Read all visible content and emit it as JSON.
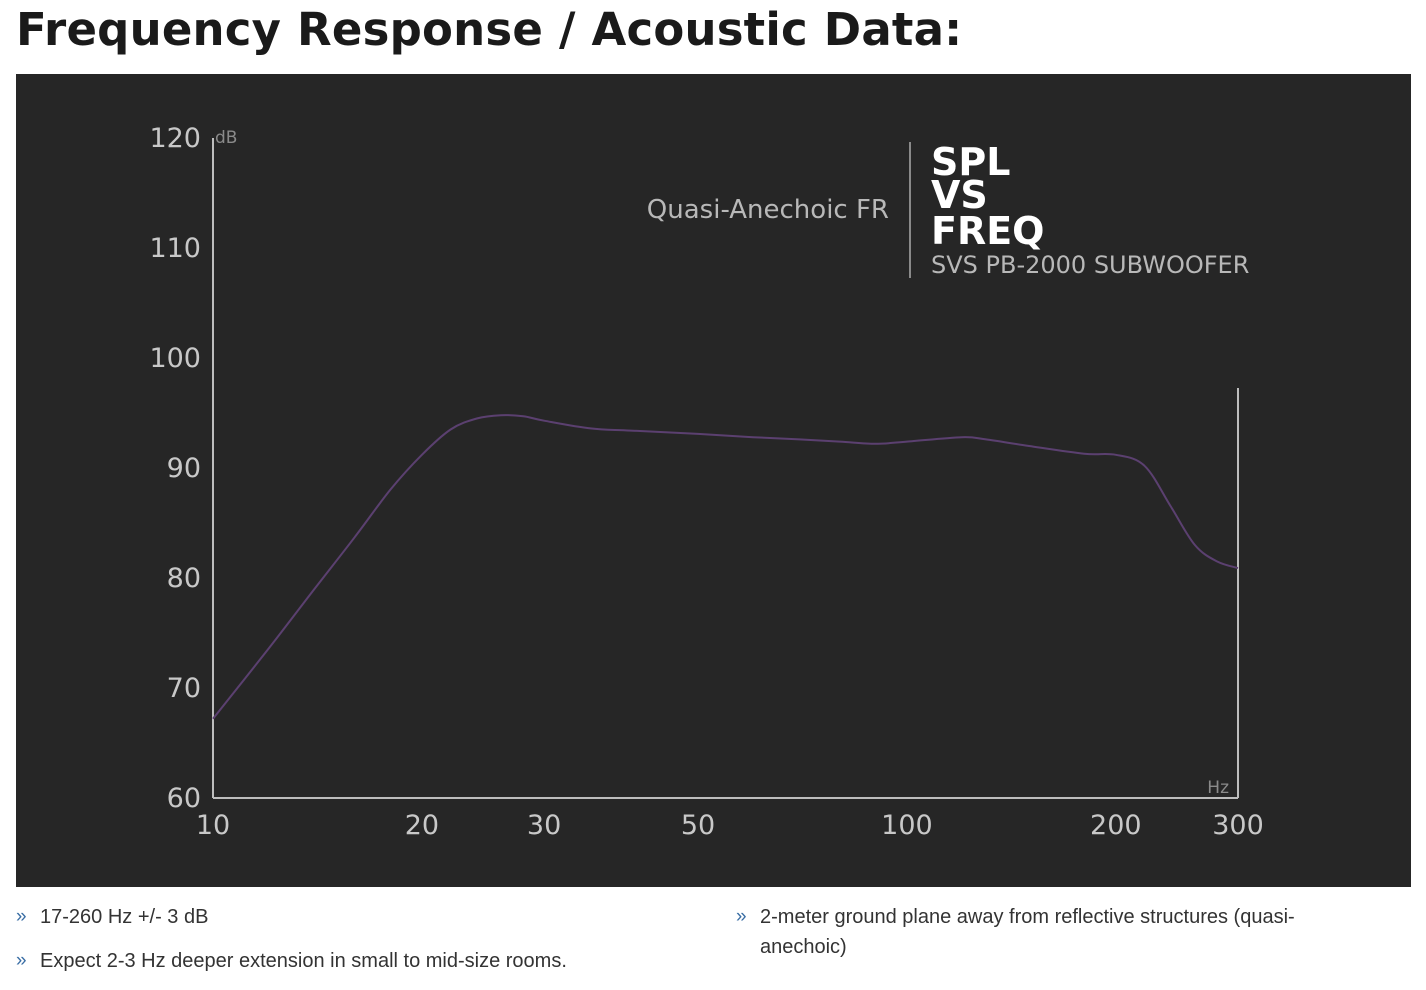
{
  "page": {
    "title": "Frequency Response / Acoustic Data:"
  },
  "graphic": {
    "subtitle": "Quasi-Anechoic FR",
    "heading_lines": [
      "SPL",
      "VS",
      "FREQ"
    ],
    "product": "SVS PB-2000 SUBWOOFER"
  },
  "chart_data": {
    "type": "line",
    "xscale": "log",
    "xlim": [
      10,
      300
    ],
    "ylim": [
      60,
      120
    ],
    "x_unit": "Hz",
    "y_unit": "dB",
    "x_ticks": [
      10,
      20,
      30,
      50,
      100,
      200,
      300
    ],
    "y_ticks": [
      60,
      70,
      80,
      90,
      100,
      110,
      120
    ],
    "grid": false,
    "series": [
      {
        "color": "#5b4070",
        "x": [
          10,
          12,
          14,
          16,
          18,
          20,
          22,
          24,
          26,
          28,
          30,
          35,
          40,
          50,
          60,
          70,
          80,
          90,
          100,
          120,
          130,
          150,
          180,
          200,
          220,
          240,
          260,
          280,
          300
        ],
        "y": [
          67.2,
          73.5,
          79,
          83.7,
          88,
          91.2,
          93.5,
          94.5,
          94.8,
          94.7,
          94.3,
          93.6,
          93.4,
          93.1,
          92.8,
          92.6,
          92.4,
          92.2,
          92.4,
          92.8,
          92.6,
          92.0,
          91.3,
          91.2,
          90.2,
          86.5,
          83,
          81.5,
          80.9
        ]
      }
    ]
  },
  "notes": {
    "left": [
      "17-260 Hz +/- 3 dB",
      "Expect 2-3 Hz deeper extension in small to mid-size rooms."
    ],
    "right": [
      "2-meter ground plane away from reflective structures (quasi-anechoic)"
    ],
    "bullet": "»"
  }
}
